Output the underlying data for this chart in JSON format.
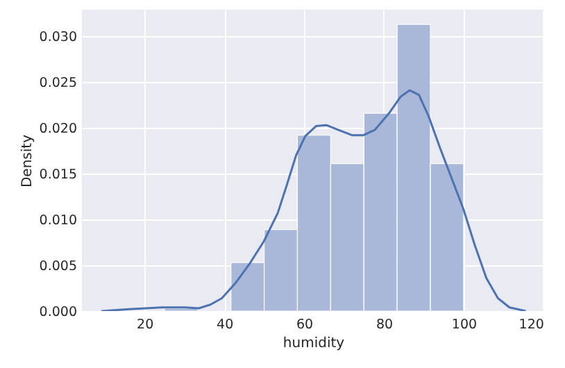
{
  "chart_data": {
    "type": "histogram",
    "xlabel": "humidity",
    "ylabel": "Density",
    "xlim": [
      4.3,
      120.2
    ],
    "ylim": [
      0,
      0.0329
    ],
    "xticks": [
      20,
      40,
      60,
      80,
      100,
      120
    ],
    "yticks": [
      {
        "value": 0,
        "label": "0.000"
      },
      {
        "value": 0.005,
        "label": "0.005"
      },
      {
        "value": 0.01,
        "label": "0.010"
      },
      {
        "value": 0.015,
        "label": "0.015"
      },
      {
        "value": 0.02,
        "label": "0.020"
      },
      {
        "value": 0.025,
        "label": "0.025"
      },
      {
        "value": 0.03,
        "label": "0.030"
      }
    ],
    "grid": true,
    "series": [
      {
        "type": "histogram",
        "color": "#a9b8d8",
        "bins": [
          25,
          33.33,
          41.67,
          50,
          58.33,
          66.67,
          75,
          83.33,
          91.67,
          100
        ],
        "values": [
          0.0003,
          0,
          0.0053,
          0.0089,
          0.0192,
          0.0161,
          0.0216,
          0.0313,
          0.0161
        ]
      },
      {
        "type": "line",
        "color": "#4c72b0",
        "x": [
          9.2,
          16.2,
          24.3,
          30.1,
          33.6,
          36.5,
          39.4,
          42.9,
          46.4,
          49.9,
          53.4,
          55.7,
          58.0,
          60.3,
          63.0,
          65.6,
          68.5,
          72.0,
          74.9,
          77.8,
          81.3,
          84.2,
          86.5,
          88.8,
          91.2,
          94.1,
          97.0,
          99.9,
          102.8,
          105.7,
          108.6,
          111.5,
          115.6
        ],
        "values": [
          0,
          0.0002,
          0.0004,
          0.0004,
          0.0003,
          0.0007,
          0.0014,
          0.0031,
          0.0052,
          0.0076,
          0.0107,
          0.0138,
          0.017,
          0.0191,
          0.0202,
          0.0203,
          0.0198,
          0.0192,
          0.0192,
          0.0198,
          0.0216,
          0.0234,
          0.0241,
          0.0236,
          0.0213,
          0.0178,
          0.0145,
          0.0112,
          0.0072,
          0.0036,
          0.0014,
          0.0004,
          0
        ]
      }
    ]
  }
}
